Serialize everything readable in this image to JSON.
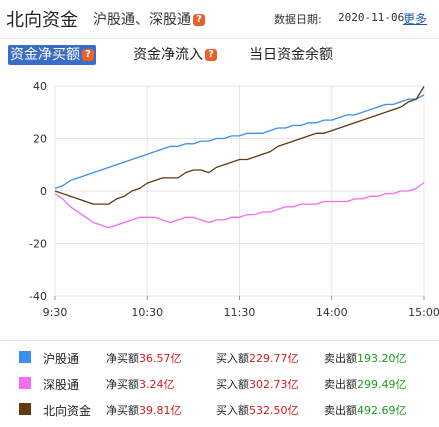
{
  "header": {
    "title": "北向资金",
    "subtitle": "沪股通、深股通",
    "date_label": "数据日期:",
    "date_value": "2020-11-06",
    "more": "更多"
  },
  "tabs": [
    {
      "label": "资金净买额",
      "active": true
    },
    {
      "label": "资金净流入",
      "active": false
    },
    {
      "label": "当日资金余额",
      "active": false
    }
  ],
  "colors": {
    "hgt": "#3b8ff0",
    "sgt": "#f46cf2",
    "north": "#5f3a12",
    "grid": "#e6e6e6",
    "active_tab": "#3a6cc8"
  },
  "chart_data": {
    "type": "line",
    "unit": "亿",
    "ylim": [
      -40,
      40
    ],
    "yticks": [
      40,
      20,
      0,
      -20,
      -40
    ],
    "xlim_minutes": [
      0,
      240
    ],
    "xticks": [
      {
        "label": "9:30",
        "min": 0
      },
      {
        "label": "10:30",
        "min": 60
      },
      {
        "label": "11:30",
        "min": 120
      },
      {
        "label": "14:00",
        "min": 180
      },
      {
        "label": "15:00",
        "min": 240
      }
    ],
    "grid": true,
    "series": [
      {
        "name": "沪股通",
        "color": "#3b8ff0",
        "x": [
          0,
          5,
          10,
          15,
          20,
          25,
          30,
          35,
          40,
          45,
          50,
          55,
          60,
          65,
          70,
          75,
          80,
          85,
          90,
          95,
          100,
          105,
          110,
          115,
          120,
          125,
          130,
          135,
          140,
          145,
          150,
          155,
          160,
          165,
          170,
          175,
          180,
          185,
          190,
          195,
          200,
          205,
          210,
          215,
          220,
          225,
          230,
          235,
          240
        ],
        "values": [
          1,
          2,
          4,
          5,
          6,
          7,
          8,
          9,
          10,
          11,
          12,
          13,
          14,
          15,
          16,
          17,
          17,
          18,
          18,
          19,
          19,
          20,
          20,
          21,
          21,
          22,
          22,
          22,
          23,
          24,
          24,
          25,
          25,
          26,
          26,
          27,
          27,
          28,
          29,
          29,
          30,
          31,
          32,
          33,
          33,
          34,
          35,
          35,
          36.57
        ]
      },
      {
        "name": "深股通",
        "color": "#f46cf2",
        "x": [
          0,
          5,
          10,
          15,
          20,
          25,
          30,
          35,
          40,
          45,
          50,
          55,
          60,
          65,
          70,
          75,
          80,
          85,
          90,
          95,
          100,
          105,
          110,
          115,
          120,
          125,
          130,
          135,
          140,
          145,
          150,
          155,
          160,
          165,
          170,
          175,
          180,
          185,
          190,
          195,
          200,
          205,
          210,
          215,
          220,
          225,
          230,
          235,
          240
        ],
        "values": [
          -1,
          -3,
          -6,
          -8,
          -10,
          -12,
          -13,
          -14,
          -13,
          -12,
          -11,
          -10,
          -10,
          -10,
          -11,
          -12,
          -11,
          -10,
          -10,
          -11,
          -12,
          -11,
          -11,
          -10,
          -10,
          -9,
          -9,
          -8,
          -8,
          -7,
          -6,
          -6,
          -5,
          -5,
          -5,
          -4,
          -4,
          -4,
          -4,
          -3,
          -3,
          -2,
          -2,
          -1,
          -1,
          0,
          0,
          1,
          3.24
        ]
      },
      {
        "name": "北向资金",
        "color": "#5f3a12",
        "x": [
          0,
          5,
          10,
          15,
          20,
          25,
          30,
          35,
          40,
          45,
          50,
          55,
          60,
          65,
          70,
          75,
          80,
          85,
          90,
          95,
          100,
          105,
          110,
          115,
          120,
          125,
          130,
          135,
          140,
          145,
          150,
          155,
          160,
          165,
          170,
          175,
          180,
          185,
          190,
          195,
          200,
          205,
          210,
          215,
          220,
          225,
          230,
          235,
          240
        ],
        "values": [
          0,
          -1,
          -2,
          -3,
          -4,
          -5,
          -5,
          -5,
          -3,
          -2,
          0,
          1,
          3,
          4,
          5,
          5,
          5,
          7,
          8,
          8,
          7,
          9,
          10,
          11,
          12,
          12,
          13,
          14,
          15,
          17,
          18,
          19,
          20,
          21,
          22,
          22,
          23,
          24,
          25,
          26,
          27,
          28,
          29,
          30,
          31,
          32,
          34,
          35,
          39.81
        ]
      }
    ]
  },
  "legend": [
    {
      "name": "沪股通",
      "color": "#3b8ff0",
      "net_label": "净买额",
      "net": "36.57亿",
      "buy_label": "买入额",
      "buy": "229.77亿",
      "sell_label": "卖出额",
      "sell": "193.20亿"
    },
    {
      "name": "深股通",
      "color": "#f46cf2",
      "net_label": "净买额",
      "net": "3.24亿",
      "buy_label": "买入额",
      "buy": "302.73亿",
      "sell_label": "卖出额",
      "sell": "299.49亿"
    },
    {
      "name": "北向资金",
      "color": "#5f3a12",
      "net_label": "净买额",
      "net": "39.81亿",
      "buy_label": "买入额",
      "buy": "532.50亿",
      "sell_label": "卖出额",
      "sell": "492.69亿"
    }
  ]
}
